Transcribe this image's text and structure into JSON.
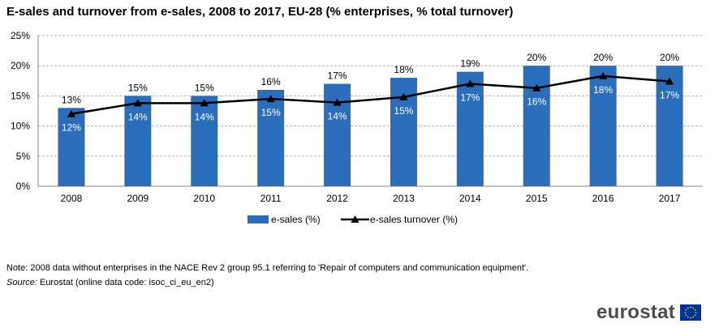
{
  "title": "E-sales and turnover from e-sales, 2008 to 2017, EU-28 (% enterprises, % total turnover)",
  "note": "Note: 2008 data without enterprises in the NACE Rev 2 group 95.1 referring to 'Repair of computers and communication equipment'.",
  "source": {
    "label": "Source:",
    "text": " Eurostat (online data code: isoc_ci_eu_en2)"
  },
  "logo": {
    "text": "eurostat",
    "flag_icon": "eu-flag-icon"
  },
  "colors": {
    "bar": "#2a6ebb",
    "line": "#000000",
    "grid": "#b3b3b3"
  },
  "chart_data": {
    "type": "bar",
    "categories": [
      "2008",
      "2009",
      "2010",
      "2011",
      "2012",
      "2013",
      "2014",
      "2015",
      "2016",
      "2017"
    ],
    "series": [
      {
        "name": "e-sales (%)",
        "type": "bar",
        "values": [
          13,
          15,
          15,
          16,
          17,
          18,
          19,
          20,
          20,
          20
        ],
        "labels": [
          "13%",
          "15%",
          "15%",
          "16%",
          "17%",
          "18%",
          "19%",
          "20%",
          "20%",
          "20%"
        ]
      },
      {
        "name": "e-sales turnover (%)",
        "type": "line",
        "marker": "triangle",
        "values": [
          12,
          13.8,
          13.8,
          14.5,
          13.9,
          14.8,
          17,
          16.3,
          18.3,
          17.4
        ],
        "labels": [
          "12%",
          "14%",
          "14%",
          "15%",
          "14%",
          "15%",
          "17%",
          "16%",
          "18%",
          "17%"
        ]
      }
    ],
    "ylim": [
      0,
      25
    ],
    "yticks": [
      "0%",
      "5%",
      "10%",
      "15%",
      "20%",
      "25%"
    ],
    "grid": true,
    "legend": "bottom-center"
  }
}
